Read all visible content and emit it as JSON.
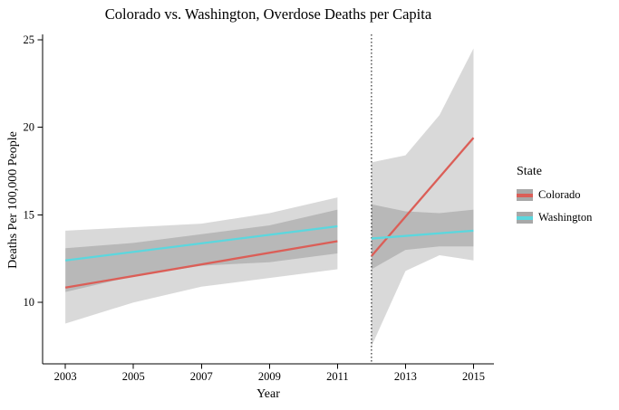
{
  "figure": {
    "title": "Colorado vs. Washington, Overdose Deaths per Capita"
  },
  "chart_data": {
    "type": "line",
    "title": "Colorado vs. Washington, Overdose Deaths per Capita",
    "xlabel": "Year",
    "ylabel": "Deaths Per 100,000 People",
    "xlim": [
      2002.33,
      2015.6
    ],
    "ylim": [
      6.5,
      25.3
    ],
    "x_ticks": [
      2003,
      2005,
      2007,
      2009,
      2011,
      2013,
      2015
    ],
    "y_ticks": [
      10,
      15,
      20,
      25
    ],
    "grid": false,
    "vline": {
      "x": 2012,
      "style": "dotted",
      "color": "#000000"
    },
    "band": {
      "color": "#000000",
      "opacity": 0.15
    },
    "legend": {
      "title": "State",
      "position": "right",
      "swatch_bg": "#a8a8a8"
    },
    "series": [
      {
        "name": "Colorado",
        "color": "#DB5E57",
        "segments": [
          {
            "x": [
              2003,
              2011
            ],
            "y": [
              10.85,
              13.5
            ],
            "ci_x": [
              2003,
              2005,
              2007,
              2009,
              2011
            ],
            "ci_upper": [
              13.1,
              13.4,
              13.9,
              14.4,
              15.3
            ],
            "ci_lower": [
              8.8,
              10.0,
              10.9,
              11.4,
              11.9
            ]
          },
          {
            "x": [
              2012,
              2015
            ],
            "y": [
              12.65,
              19.4
            ],
            "ci_x": [
              2012,
              2013,
              2014,
              2015
            ],
            "ci_upper": [
              18.0,
              18.4,
              20.7,
              24.5
            ],
            "ci_lower": [
              7.5,
              11.8,
              12.7,
              12.4
            ]
          }
        ]
      },
      {
        "name": "Washington",
        "color": "#5BD7DE",
        "segments": [
          {
            "x": [
              2003,
              2011
            ],
            "y": [
              12.4,
              14.35
            ],
            "ci_x": [
              2003,
              2005,
              2007,
              2009,
              2011
            ],
            "ci_upper": [
              14.1,
              14.3,
              14.5,
              15.1,
              16.0
            ],
            "ci_lower": [
              10.6,
              11.5,
              12.1,
              12.3,
              12.8
            ]
          },
          {
            "x": [
              2012,
              2015
            ],
            "y": [
              13.65,
              14.1
            ],
            "ci_x": [
              2012,
              2013,
              2014,
              2015
            ],
            "ci_upper": [
              15.6,
              15.2,
              15.1,
              15.3
            ],
            "ci_lower": [
              11.9,
              13.0,
              13.2,
              13.2
            ]
          }
        ]
      }
    ]
  }
}
